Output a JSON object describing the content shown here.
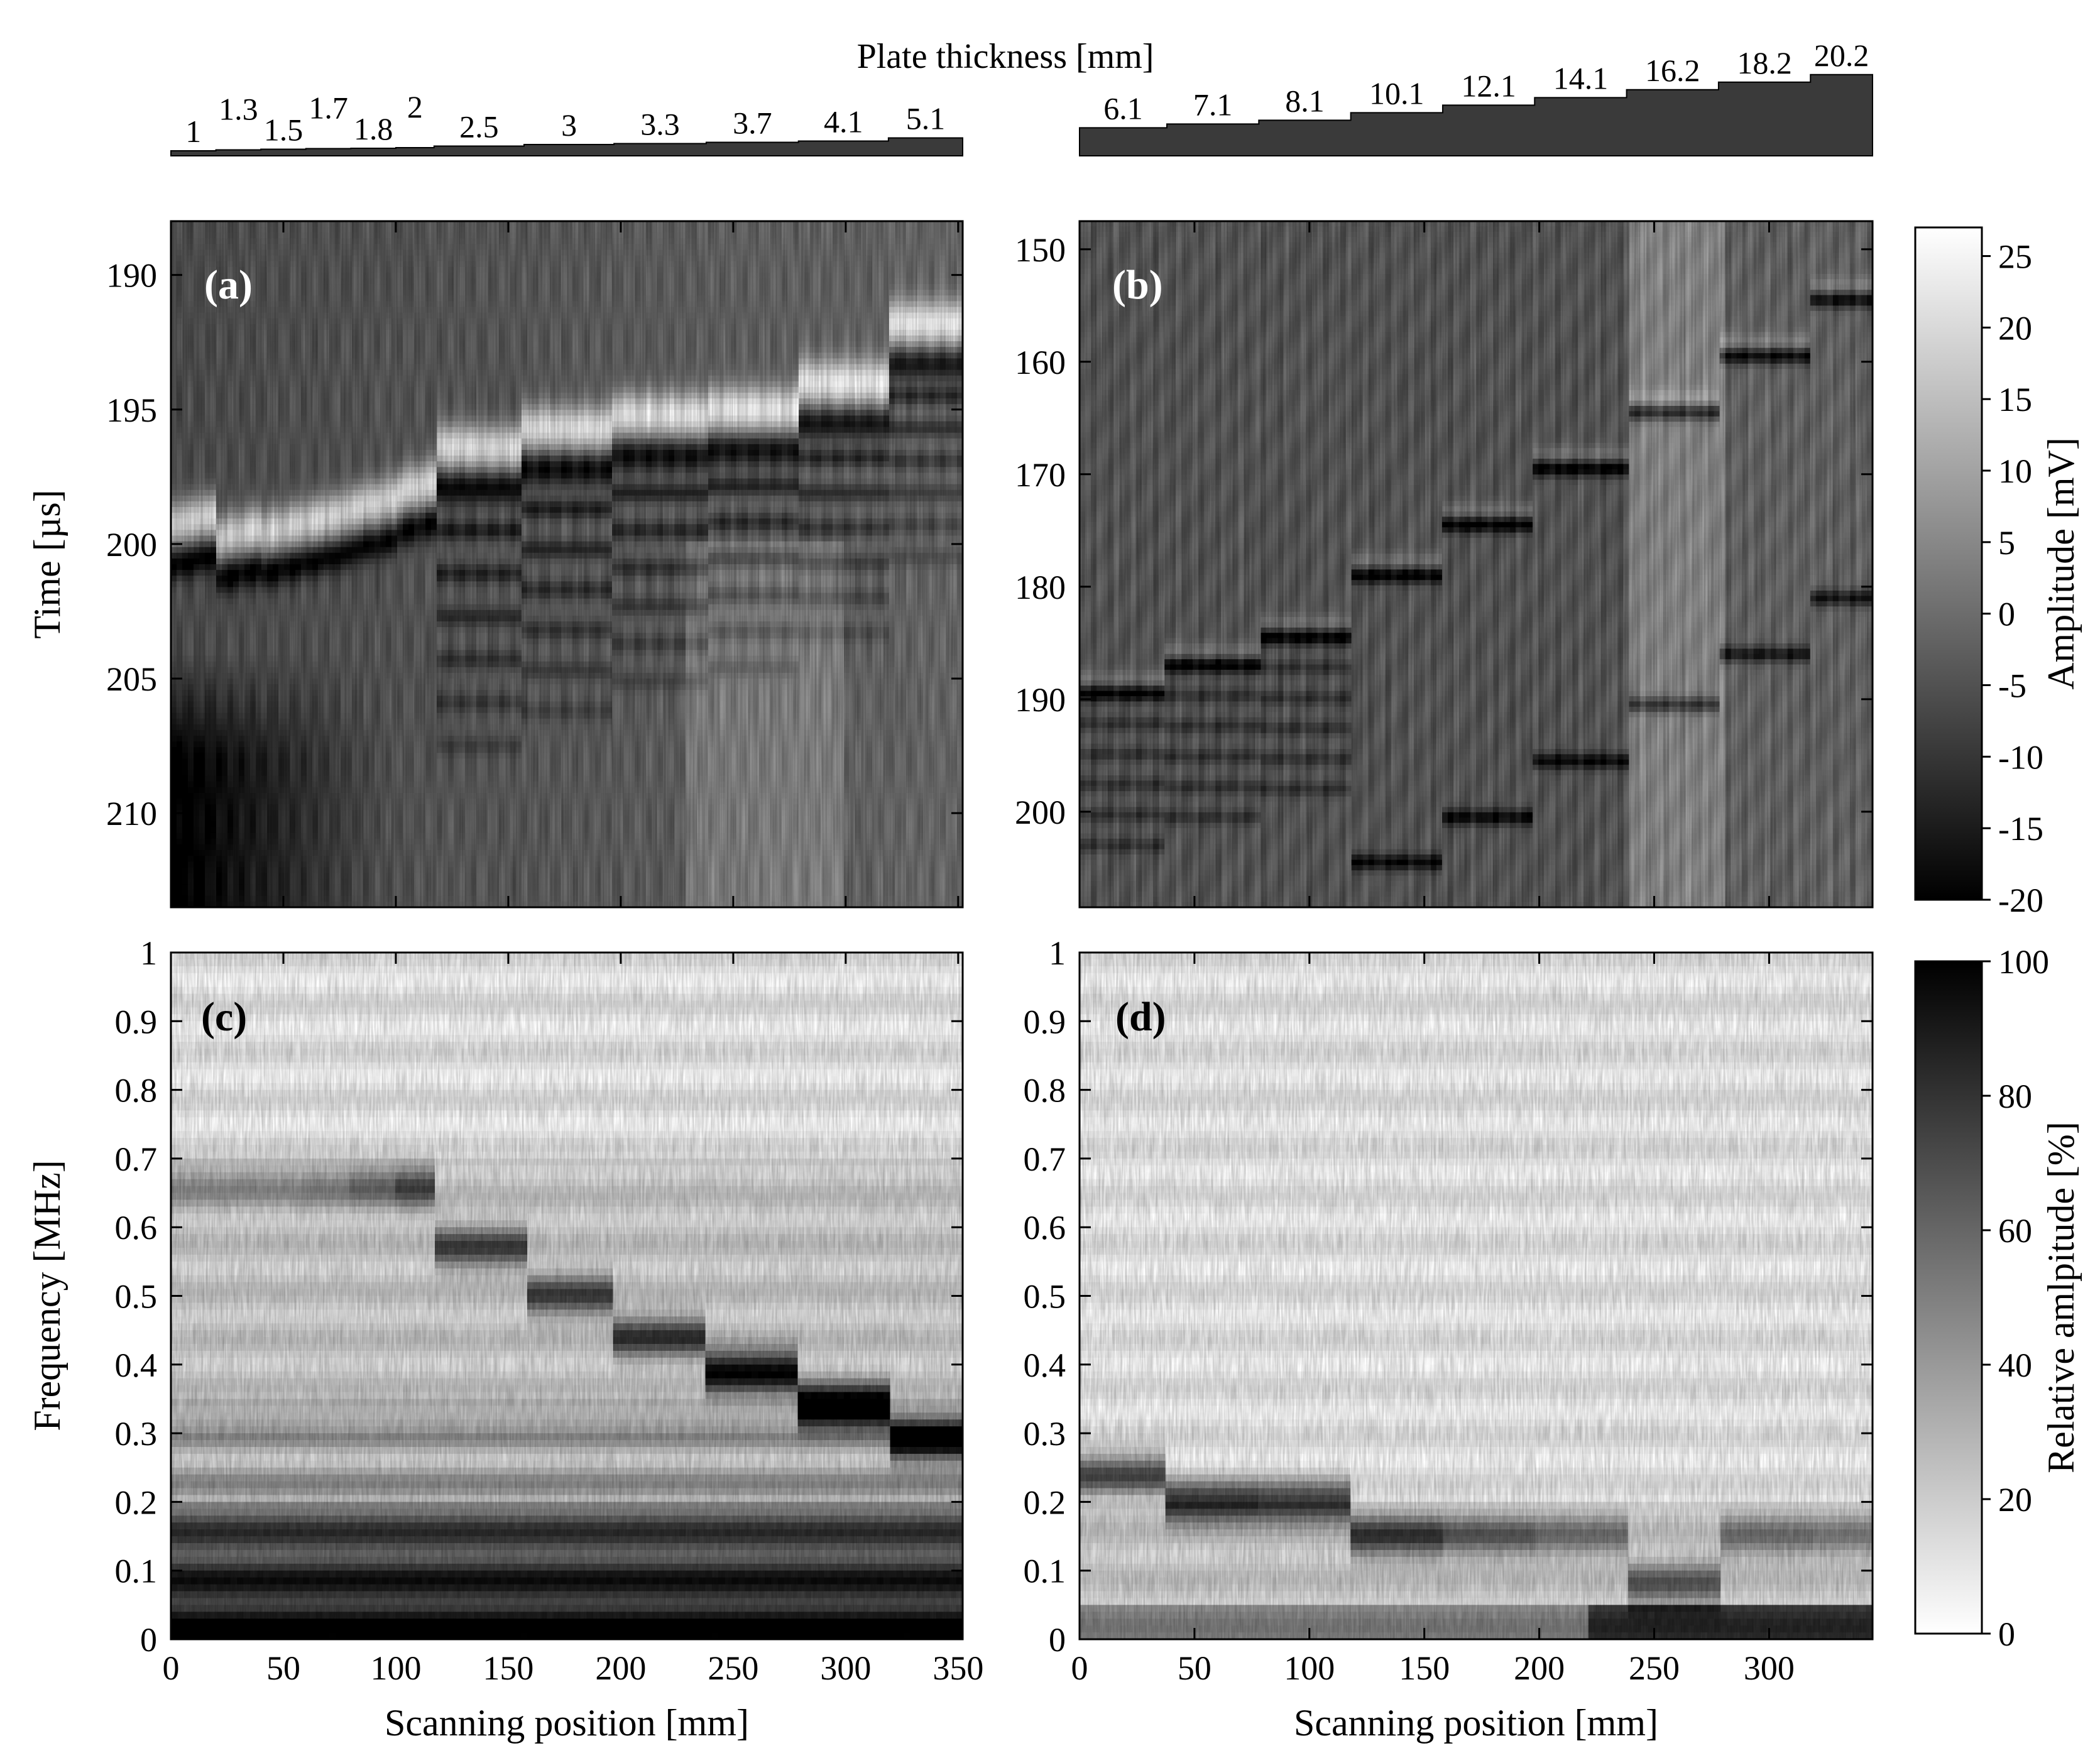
{
  "figure": {
    "thickness_title": "Plate thickness [mm]",
    "thickness_labels_left": [
      "1",
      "1.3",
      "1.5",
      "1.7",
      "1.8",
      "2",
      "2.5",
      "3",
      "3.3",
      "3.7",
      "4.1",
      "5.1"
    ],
    "thickness_labels_right": [
      "6.1",
      "7.1",
      "8.1",
      "10.1",
      "12.1",
      "14.1",
      "16.2",
      "18.2",
      "20.2"
    ],
    "colors": {
      "background": "#ffffff",
      "ink": "#000000",
      "wedge_fill": "#3a3a3a"
    }
  },
  "chart_data": [
    {
      "panel": "(a)",
      "type": "heatmap",
      "xlabel": "",
      "ylabel": "Time [µs]",
      "xlim": [
        0,
        352
      ],
      "ylim": [
        188,
        213.5
      ],
      "y_inverted": true,
      "xticks": [
        0,
        50,
        100,
        150,
        200,
        250,
        300,
        350
      ],
      "yticks": [
        190,
        195,
        200,
        205,
        210
      ],
      "ytick_labels": [
        "190",
        "195",
        "200",
        "205",
        "210"
      ],
      "colormap": "gray (black = -20 mV, white = 26 mV)",
      "thickness_steps_mm": [
        1,
        1.3,
        1.5,
        1.7,
        1.8,
        2,
        2.5,
        3,
        3.3,
        3.7,
        4.1,
        5.1
      ],
      "step_boundaries_mm": [
        0,
        20,
        40,
        60,
        80,
        100,
        117,
        157,
        197,
        238,
        279,
        319,
        352
      ],
      "first_echo_us": [
        200.5,
        201.0,
        200.8,
        200.4,
        199.9,
        199.3,
        197.6,
        196.9,
        196.4,
        196.2,
        195.2,
        193.0
      ],
      "echo_spacing_us": [
        0,
        0,
        0,
        0,
        0,
        0,
        1.6,
        1.5,
        1.4,
        1.35,
        1.3,
        1.2
      ]
    },
    {
      "panel": "(b)",
      "type": "heatmap",
      "xlabel": "",
      "ylabel": "",
      "xlim": [
        0,
        345
      ],
      "ylim": [
        147.5,
        208.5
      ],
      "y_inverted": true,
      "xticks": [
        0,
        50,
        100,
        150,
        200,
        250,
        300
      ],
      "yticks": [
        150,
        160,
        170,
        180,
        190,
        200
      ],
      "ytick_labels": [
        "150",
        "160",
        "170",
        "180",
        "190",
        "200"
      ],
      "colormap": "gray (black = -20 mV, white = 26 mV)",
      "thickness_steps_mm": [
        6.1,
        7.1,
        8.1,
        10.1,
        12.1,
        14.1,
        16.2,
        18.2,
        20.2
      ],
      "step_boundaries_mm": [
        0,
        38,
        78,
        118,
        158,
        198,
        238,
        278,
        318,
        345
      ],
      "first_echo_us": [
        189.5,
        187.0,
        184.5,
        179.0,
        174.5,
        169.5,
        164.5,
        159.5,
        154.5
      ],
      "second_echo_us": [
        null,
        null,
        null,
        204.5,
        200.5,
        195.5,
        190.5,
        186.0,
        181.0
      ]
    },
    {
      "panel": "(c)",
      "type": "heatmap",
      "xlabel": "Scanning position [mm]",
      "ylabel": "Frequency [MHz]",
      "xlim": [
        0,
        352
      ],
      "ylim": [
        0,
        1
      ],
      "xticks": [
        0,
        50,
        100,
        150,
        200,
        250,
        300,
        350
      ],
      "xtick_labels": [
        "0",
        "50",
        "100",
        "150",
        "200",
        "250",
        "300",
        "350"
      ],
      "yticks": [
        0,
        0.1,
        0.2,
        0.3,
        0.4,
        0.5,
        0.6,
        0.7,
        0.8,
        0.9,
        1
      ],
      "ytick_labels": [
        "0",
        "0.1",
        "0.2",
        "0.3",
        "0.4",
        "0.5",
        "0.6",
        "0.7",
        "0.8",
        "0.9",
        "1"
      ],
      "colormap": "inverted gray (white = 0 %, black = 100 %)",
      "step_boundaries_mm": [
        0,
        20,
        40,
        60,
        80,
        100,
        117,
        157,
        197,
        238,
        279,
        319,
        352
      ],
      "resonance_MHz": [
        0.66,
        0.66,
        0.66,
        0.66,
        0.66,
        0.66,
        0.57,
        0.5,
        0.44,
        0.39,
        0.34,
        0.29
      ],
      "resonance_strength": [
        0.25,
        0.25,
        0.25,
        0.3,
        0.4,
        0.55,
        0.55,
        0.55,
        0.6,
        0.85,
        1.0,
        0.85
      ]
    },
    {
      "panel": "(d)",
      "type": "heatmap",
      "xlabel": "Scanning position [mm]",
      "ylabel": "",
      "xlim": [
        0,
        345
      ],
      "ylim": [
        0,
        1
      ],
      "xticks": [
        0,
        50,
        100,
        150,
        200,
        250,
        300
      ],
      "xtick_labels": [
        "0",
        "50",
        "100",
        "150",
        "200",
        "250",
        "300"
      ],
      "yticks": [
        0,
        0.1,
        0.2,
        0.3,
        0.4,
        0.5,
        0.6,
        0.7,
        0.8,
        0.9,
        1
      ],
      "ytick_labels": [
        "0",
        "0.1",
        "0.2",
        "0.3",
        "0.4",
        "0.5",
        "0.6",
        "0.7",
        "0.8",
        "0.9",
        "1"
      ],
      "colormap": "inverted gray (white = 0 %, black = 100 %)",
      "step_boundaries_mm": [
        0,
        38,
        78,
        118,
        158,
        198,
        238,
        278,
        318,
        345
      ],
      "resonance_MHz": [
        0.24,
        0.2,
        0.2,
        0.15,
        0.15,
        0.15,
        0.08,
        0.15,
        0.15
      ],
      "resonance_strength": [
        0.65,
        0.75,
        0.7,
        0.6,
        0.45,
        0.35,
        0.45,
        0.35,
        0.3
      ]
    }
  ],
  "colorbar_top": {
    "label": "Amplitude [mV]",
    "range": [
      -20,
      27
    ],
    "ticks": [
      25,
      20,
      15,
      10,
      5,
      0,
      -5,
      -10,
      -15,
      -20
    ],
    "tick_labels": [
      "25",
      "20",
      "15",
      "10",
      "5",
      "0",
      "-5",
      "-10",
      "-15",
      "-20"
    ],
    "direction": "black at bottom, white at top"
  },
  "colorbar_bottom": {
    "label": "Relative amlpitude  [%]",
    "range": [
      0,
      100
    ],
    "ticks": [
      100,
      80,
      60,
      40,
      20,
      0
    ],
    "tick_labels": [
      "100",
      "80",
      "60",
      "40",
      "20",
      "0"
    ],
    "direction": "white at bottom, black at top"
  }
}
